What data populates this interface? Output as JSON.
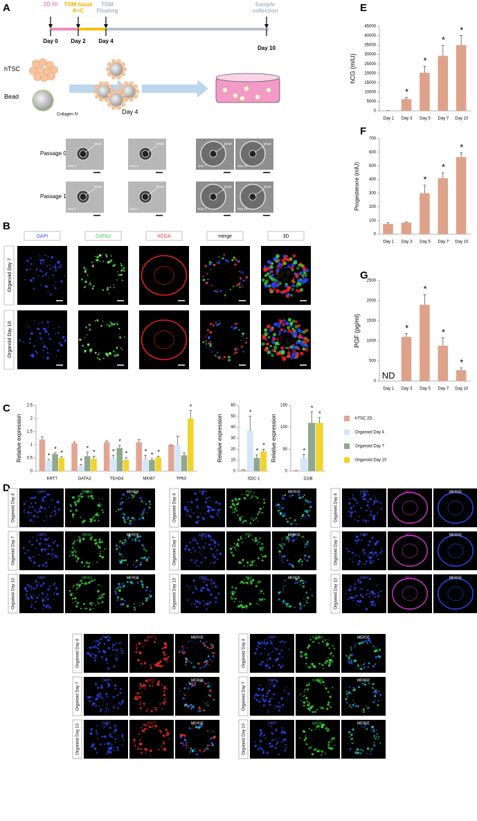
{
  "panel_labels": [
    "A",
    "B",
    "C",
    "D",
    "E",
    "F",
    "G"
  ],
  "timeline": {
    "stages": [
      "2D RI",
      "TOM basal A+C",
      "TOM Floating",
      "Sample collection"
    ],
    "days": [
      "Day 0",
      "Day 2",
      "Day 4",
      "Day 10"
    ]
  },
  "schematic": {
    "cells": "hTSC",
    "bead": "Bead",
    "coating": "Collagen IV",
    "day": "Day 4"
  },
  "passages": [
    {
      "label": "Passage 0",
      "images": [
        {
          "day": "Day 2",
          "tag": "Bead"
        },
        {
          "day": "Day 4",
          "tag": "Bead"
        },
        {
          "day": "Day 7",
          "tag": "Bead"
        },
        {
          "day": "Day 10",
          "tag": "Bead"
        }
      ]
    },
    {
      "label": "Passage 1",
      "images": [
        {
          "day": "Day 2",
          "tag": "Bead"
        },
        {
          "day": "Day 4",
          "tag": "Bead"
        },
        {
          "day": "Day 7",
          "tag": "Bead"
        },
        {
          "day": "Day 10",
          "tag": "Bead"
        }
      ]
    }
  ],
  "staining": {
    "columns": [
      "DAPI",
      "GATA3",
      "hCGA",
      "merge",
      "3D"
    ],
    "rows": [
      "Organoid Day 7",
      "Organoid Day 10"
    ]
  },
  "immunofluorescence": {
    "rows": [
      "Organoid Day 4",
      "Organoid Day 7",
      "Organoid Day 10"
    ],
    "groups": [
      {
        "channels": [
          "DAPI",
          "MKI67",
          "MERGE"
        ]
      },
      {
        "channels": [
          "DAPI",
          "P63",
          "MERGE"
        ]
      },
      {
        "channels": [
          "DAPI",
          "SDC-1",
          "MERGE"
        ]
      },
      {
        "channels": [
          "DAPI",
          "KRT7",
          "MERGE"
        ]
      },
      {
        "channels": [
          "DAPI",
          "GATA3",
          "MERGE"
        ]
      }
    ]
  },
  "chart_data": [
    {
      "type": "bar",
      "y_label": "Relative expression",
      "categories": [
        "KRT7",
        "GATA3",
        "TEAD4",
        "MKI67",
        "TP63"
      ],
      "ylim": [
        0,
        2.5
      ],
      "yticks": [
        0,
        0.5,
        1,
        1.5,
        2,
        2.5
      ],
      "legend": true,
      "series": [
        {
          "name": "hTSC 2D",
          "color": "#e2a593",
          "values": [
            1.2,
            1.05,
            1.1,
            1.1,
            1.0
          ],
          "errors": [
            0.1,
            0.05,
            0.05,
            0.1,
            0.0
          ]
        },
        {
          "name": "Organoid Day 4",
          "color": "#d4e6f7",
          "values": [
            0.4,
            0.2,
            0.5,
            0.45,
            0.98
          ],
          "errors": [
            0.05,
            0.05,
            0.1,
            0.15,
            0.35
          ],
          "annotations": [
            "*",
            "*",
            "*",
            "*",
            null
          ]
        },
        {
          "name": "Organoid Day 7",
          "color": "#8fa88f",
          "values": [
            0.65,
            0.57,
            0.88,
            0.42,
            0.6
          ],
          "errors": [
            0.05,
            0.15,
            0.1,
            0.05,
            0.1
          ],
          "annotations": [
            "*",
            "*",
            "*",
            "*",
            null
          ]
        },
        {
          "name": "Organoid Day 10",
          "color": "#f2d32b",
          "values": [
            0.5,
            0.47,
            0.42,
            0.52,
            2.0
          ],
          "errors": [
            0.05,
            0.1,
            0.1,
            0.05,
            0.3
          ],
          "annotations": [
            "*",
            "*",
            "*",
            "*",
            "*"
          ]
        }
      ]
    },
    {
      "type": "bar",
      "y_label": "Relative expression",
      "categories": [
        "SDC-1"
      ],
      "ylim": [
        0,
        60
      ],
      "yticks": [
        0,
        10,
        20,
        30,
        40,
        50,
        60
      ],
      "series": [
        {
          "color": "#e2a593",
          "values": [
            1
          ],
          "errors": [
            0.3
          ]
        },
        {
          "color": "#d4e6f7",
          "values": [
            37
          ],
          "errors": [
            13
          ],
          "annotations": [
            "*"
          ]
        },
        {
          "color": "#8fa88f",
          "values": [
            12
          ],
          "errors": [
            3
          ],
          "annotations": [
            "*"
          ]
        },
        {
          "color": "#f2d32b",
          "values": [
            18
          ],
          "errors": [
            2
          ],
          "annotations": [
            "*"
          ]
        }
      ]
    },
    {
      "type": "bar",
      "y_label": "Relative expression",
      "categories": [
        "CGB"
      ],
      "ylim": [
        0,
        150
      ],
      "yticks": [
        0,
        50,
        100,
        150
      ],
      "series": [
        {
          "color": "#e2a593",
          "values": [
            1
          ],
          "errors": [
            0.5
          ]
        },
        {
          "color": "#d4e6f7",
          "values": [
            30
          ],
          "errors": [
            8
          ],
          "annotations": [
            "*"
          ]
        },
        {
          "color": "#8fa88f",
          "values": [
            110
          ],
          "errors": [
            25
          ],
          "annotations": [
            "*"
          ]
        },
        {
          "color": "#f2d32b",
          "values": [
            110
          ],
          "errors": [
            12
          ],
          "annotations": [
            "*"
          ]
        }
      ]
    },
    {
      "type": "bar",
      "y_label": "hCG (mIU)",
      "categories": [
        "Day 1",
        "Day 3",
        "Day 5",
        "Day 7",
        "Day 10"
      ],
      "color": "#dea28b",
      "values": [
        100,
        6200,
        20300,
        29300,
        35000
      ],
      "errors": [
        50,
        1000,
        3500,
        5500,
        5000
      ],
      "annotations": [
        null,
        "*",
        "*",
        "*",
        "*"
      ],
      "ylim": [
        0,
        45000
      ],
      "yticks": [
        0,
        5000,
        10000,
        15000,
        20000,
        25000,
        30000,
        35000,
        40000,
        45000
      ]
    },
    {
      "type": "bar",
      "y_label": "Progesterone (mIU)",
      "categories": [
        "Day 1",
        "Day 3",
        "Day 5",
        "Day 7",
        "Day 10"
      ],
      "color": "#dea28b",
      "values": [
        75,
        85,
        300,
        410,
        565
      ],
      "errors": [
        10,
        5,
        60,
        40,
        30
      ],
      "annotations": [
        null,
        null,
        "*",
        "*",
        "*"
      ],
      "ylim": [
        0,
        700
      ],
      "yticks": [
        0,
        100,
        200,
        300,
        400,
        500,
        600,
        700
      ]
    },
    {
      "type": "bar",
      "y_label": "PGF (pg/ml)",
      "categories": [
        "Day 1",
        "Day 3",
        "Day 5",
        "Day 7",
        "Day 10"
      ],
      "color": "#dea28b",
      "values": [
        null,
        1100,
        1900,
        880,
        270
      ],
      "errors": [
        null,
        80,
        250,
        200,
        60
      ],
      "annotations": [
        "ND",
        "*",
        "*",
        "*",
        "*"
      ],
      "ylim": [
        0,
        2500
      ],
      "yticks": [
        0,
        500,
        1000,
        1500,
        2000,
        2500
      ]
    }
  ]
}
